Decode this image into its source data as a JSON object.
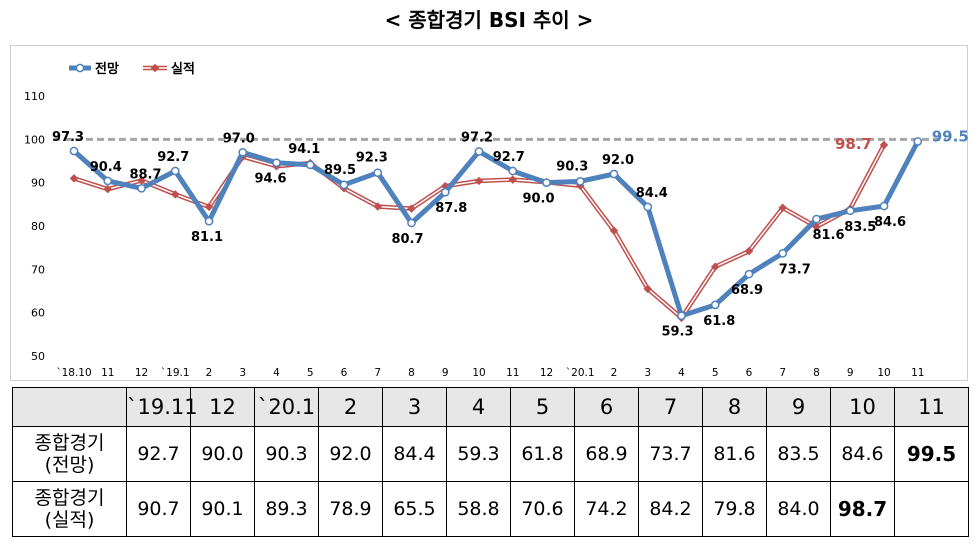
{
  "title": "< 종합경기 BSI 추이 >",
  "colors": {
    "forecast": "#4f81bd",
    "actual": "#c0504d",
    "reference": "#a6a6a6"
  },
  "chart_data": {
    "type": "line",
    "categories": [
      "`18.10",
      "11",
      "12",
      "`19.1",
      "2",
      "3",
      "4",
      "5",
      "6",
      "7",
      "8",
      "9",
      "10",
      "11",
      "12",
      "`20.1",
      "2",
      "3",
      "4",
      "5",
      "6",
      "7",
      "8",
      "9",
      "10",
      "11"
    ],
    "series": [
      {
        "name": "전망",
        "values": [
          97.3,
          90.4,
          88.7,
          92.7,
          81.1,
          97.0,
          94.6,
          94.1,
          89.5,
          92.3,
          80.7,
          87.8,
          97.2,
          92.7,
          90.0,
          90.3,
          92.0,
          84.4,
          59.3,
          61.8,
          68.9,
          73.7,
          81.6,
          83.5,
          84.6,
          99.5
        ]
      },
      {
        "name": "실적",
        "values": [
          91.0,
          88.5,
          90.5,
          87.3,
          84.4,
          96.0,
          93.8,
          94.5,
          88.7,
          84.5,
          84.0,
          89.2,
          90.4,
          90.7,
          90.1,
          89.3,
          78.9,
          65.5,
          58.8,
          70.6,
          74.2,
          84.2,
          79.8,
          84.0,
          98.7,
          null
        ]
      }
    ],
    "yticks": [
      50,
      60,
      70,
      80,
      90,
      100,
      110
    ],
    "ylim": [
      50,
      110
    ],
    "reference_line": 100,
    "forecast_labels": [
      "97.3",
      "90.4",
      "88.7",
      "92.7",
      "81.1",
      "97.0",
      "94.6",
      "94.1",
      "89.5",
      "92.3",
      "80.7",
      "87.8",
      "97.2",
      "92.7",
      "90.0",
      "90.3",
      "92.0",
      "84.4",
      "59.3",
      "61.8",
      "68.9",
      "73.7",
      "81.6",
      "83.5",
      "84.6",
      "99.5"
    ],
    "actual_label": "98.7",
    "legend": {
      "forecast": "전망",
      "actual": "실적",
      "placement": "top-left"
    }
  },
  "table": {
    "headers": [
      "`19.11",
      "12",
      "`20.1",
      "2",
      "3",
      "4",
      "5",
      "6",
      "7",
      "8",
      "9",
      "10",
      "11"
    ],
    "rows": [
      {
        "label": "종합경기\n(전망)",
        "values": [
          "92.7",
          "90.0",
          "90.3",
          "92.0",
          "84.4",
          "59.3",
          "61.8",
          "68.9",
          "73.7",
          "81.6",
          "83.5",
          "84.6",
          "99.5"
        ]
      },
      {
        "label": "종합경기\n(실적)",
        "values": [
          "90.7",
          "90.1",
          "89.3",
          "78.9",
          "65.5",
          "58.8",
          "70.6",
          "74.2",
          "84.2",
          "79.8",
          "84.0",
          "98.7",
          ""
        ]
      }
    ]
  }
}
